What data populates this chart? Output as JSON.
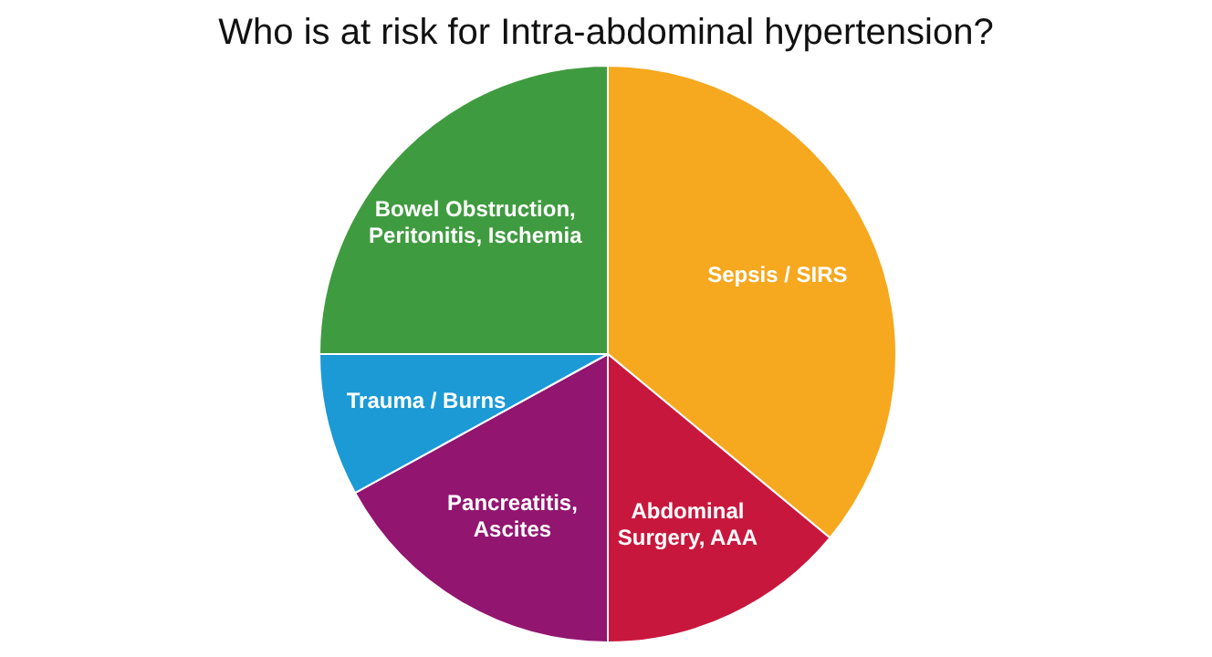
{
  "chart_data": {
    "type": "pie",
    "title": "Who is at risk for Intra-abdominal hypertension?",
    "categories": [
      "Sepsis / SIRS",
      "Abdominal\nSurgery, AAA",
      "Pancreatitis,\nAscites",
      "Trauma / Burns",
      "Bowel Obstruction,\nPeritonitis, Ischemia"
    ],
    "values": [
      36,
      14,
      17,
      8,
      25
    ],
    "colors": [
      "#f6a81f",
      "#c8173d",
      "#921570",
      "#1b9ad6",
      "#3f9b3f"
    ]
  }
}
